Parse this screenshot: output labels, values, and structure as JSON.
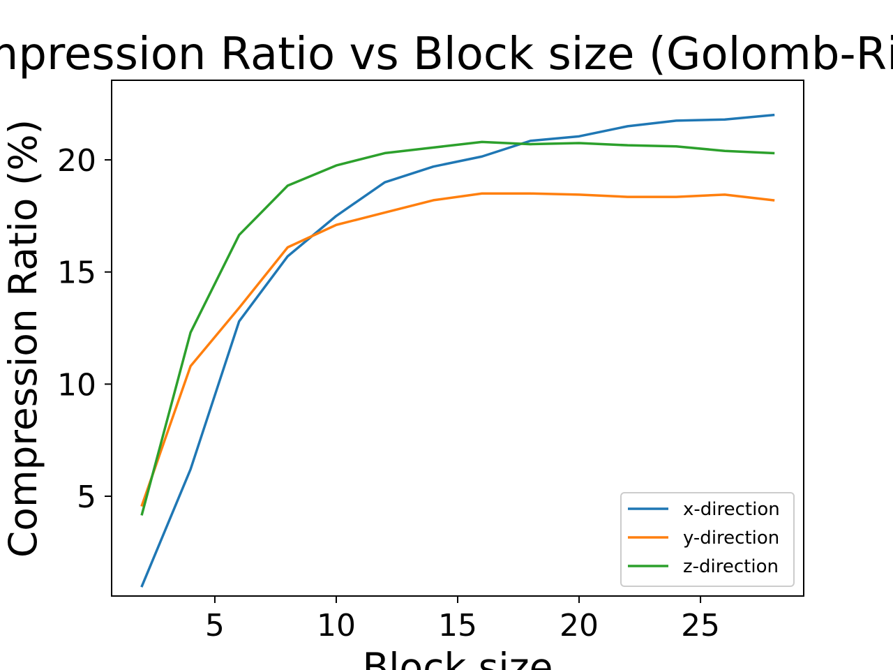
{
  "chart_data": {
    "type": "line",
    "title": "Compression Ratio vs Block size (Golomb-Rice) - ",
    "xlabel": "Block size",
    "ylabel": "Compression Ratio (%)",
    "xlim": [
      0.75,
      29.25
    ],
    "ylim": [
      0.55,
      23.55
    ],
    "xticks": [
      5,
      10,
      15,
      20,
      25
    ],
    "yticks": [
      5,
      10,
      15,
      20
    ],
    "legend_position": "lower-right",
    "grid": false,
    "x": [
      2,
      4,
      6,
      8,
      10,
      12,
      14,
      16,
      18,
      20,
      22,
      24,
      26,
      28
    ],
    "series": [
      {
        "name": "x-direction",
        "color": "#1f77b4",
        "values": [
          1.0,
          6.2,
          12.8,
          15.7,
          17.5,
          19.0,
          19.7,
          20.15,
          20.85,
          21.05,
          21.5,
          21.75,
          21.8,
          22.0
        ]
      },
      {
        "name": "y-direction",
        "color": "#ff7f0e",
        "values": [
          4.6,
          10.8,
          13.4,
          16.1,
          17.1,
          17.65,
          18.2,
          18.5,
          18.5,
          18.45,
          18.35,
          18.35,
          18.45,
          18.2
        ]
      },
      {
        "name": "z-direction",
        "color": "#2ca02c",
        "values": [
          4.2,
          12.3,
          16.65,
          18.85,
          19.75,
          20.3,
          20.55,
          20.8,
          20.7,
          20.75,
          20.65,
          20.6,
          20.4,
          20.3
        ]
      }
    ]
  }
}
